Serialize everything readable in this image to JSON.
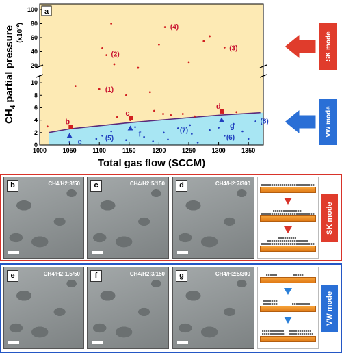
{
  "chart_data": {
    "type": "scatter",
    "panel_label": "a",
    "xlabel": "Total gas flow (SCCM)",
    "ylabel_main": "CH",
    "ylabel_sub": "4",
    "ylabel_rest": " partial pressure",
    "ylabel_unit_base": "(x10",
    "ylabel_unit_exp": "-3",
    "ylabel_unit_end": ")",
    "xlim": [
      1000,
      1375
    ],
    "x_ticks": [
      "1000",
      "1050",
      "1100",
      "1150",
      "1200",
      "1250",
      "1300",
      "1350"
    ],
    "y_ticks_lower": [
      "0",
      "2",
      "4",
      "6",
      "8",
      "10"
    ],
    "y_ticks_upper": [
      "20",
      "40",
      "60",
      "80",
      "100"
    ],
    "axis_break": true,
    "regions": [
      {
        "name": "SK mode",
        "color": "#fdeab4"
      },
      {
        "name": "VW mode",
        "color": "#a8e6f3"
      }
    ],
    "boundary": [
      [
        1015,
        2.0
      ],
      [
        1050,
        2.6
      ],
      [
        1100,
        3.1
      ],
      [
        1150,
        3.6
      ],
      [
        1200,
        4.0
      ],
      [
        1250,
        4.4
      ],
      [
        1300,
        4.8
      ],
      [
        1370,
        5.2
      ]
    ],
    "sk_points": [
      [
        1013,
        3.0
      ],
      [
        1060,
        9.5
      ],
      [
        1100,
        9.0
      ],
      [
        1105,
        45
      ],
      [
        1112,
        35
      ],
      [
        1120,
        80
      ],
      [
        1125,
        22
      ],
      [
        1130,
        4.5
      ],
      [
        1145,
        8.0
      ],
      [
        1152,
        4.0
      ],
      [
        1165,
        17
      ],
      [
        1185,
        8.5
      ],
      [
        1192,
        5.5
      ],
      [
        1200,
        50
      ],
      [
        1207,
        5.0
      ],
      [
        1210,
        75
      ],
      [
        1220,
        4.8
      ],
      [
        1240,
        5.0
      ],
      [
        1250,
        25
      ],
      [
        1260,
        4.6
      ],
      [
        1275,
        55
      ],
      [
        1285,
        62
      ],
      [
        1308,
        5.2
      ],
      [
        1310,
        46
      ],
      [
        1330,
        5.3
      ]
    ],
    "vw_points": [
      [
        1050,
        0.5
      ],
      [
        1095,
        1.0
      ],
      [
        1105,
        1.5
      ],
      [
        1120,
        2.2
      ],
      [
        1145,
        0.8
      ],
      [
        1160,
        2.9
      ],
      [
        1175,
        1.3
      ],
      [
        1190,
        0.6
      ],
      [
        1208,
        2.0
      ],
      [
        1215,
        0.9
      ],
      [
        1232,
        2.7
      ],
      [
        1252,
        3.2
      ],
      [
        1255,
        1.8
      ],
      [
        1265,
        0.4
      ],
      [
        1285,
        2.4
      ],
      [
        1300,
        2.8
      ],
      [
        1310,
        1.5
      ],
      [
        1325,
        3.4
      ],
      [
        1340,
        2.2
      ],
      [
        1350,
        1.0
      ],
      [
        1362,
        3.8
      ]
    ],
    "highlight_sk": [
      {
        "label": "b",
        "x": 1052,
        "y": 2.9
      },
      {
        "label": "c",
        "x": 1153,
        "y": 4.3
      },
      {
        "label": "d",
        "x": 1305,
        "y": 5.4
      }
    ],
    "highlight_vw": [
      {
        "label": "e",
        "x": 1050,
        "y": 1.5
      },
      {
        "label": "f",
        "x": 1152,
        "y": 2.7
      },
      {
        "label": "g",
        "x": 1305,
        "y": 4.0
      }
    ],
    "numbered": [
      {
        "label": "(1)",
        "x": 1103,
        "y": 9.0,
        "color": "#c8102e"
      },
      {
        "label": "(2)",
        "x": 1113,
        "y": 37,
        "color": "#c8102e"
      },
      {
        "label": "(3)",
        "x": 1311,
        "y": 46,
        "color": "#c8102e"
      },
      {
        "label": "(4)",
        "x": 1212,
        "y": 76,
        "color": "#c8102e"
      },
      {
        "label": "(5)",
        "x": 1103,
        "y": 1.2,
        "color": "#1f3fbf"
      },
      {
        "label": "(6)",
        "x": 1306,
        "y": 1.3,
        "color": "#1f3fbf"
      },
      {
        "label": "(7)",
        "x": 1228,
        "y": 2.5,
        "color": "#1f3fbf"
      },
      {
        "label": "(8)",
        "x": 1363,
        "y": 3.9,
        "color": "#1f3fbf"
      }
    ],
    "arrows": [
      {
        "label": "SK mode",
        "color": "#e03c2c"
      },
      {
        "label": "VW mode",
        "color": "#2a6fd6"
      }
    ]
  },
  "panels_sk": {
    "mode_label": "SK mode",
    "images": [
      {
        "label": "b",
        "ratio": "CH4/H2:3/50"
      },
      {
        "label": "c",
        "ratio": "CH4/H2:5/150"
      },
      {
        "label": "d",
        "ratio": "CH4/H2:7/300"
      }
    ]
  },
  "panels_vw": {
    "mode_label": "VW mode",
    "images": [
      {
        "label": "e",
        "ratio": "CH4/H2:1.5/50"
      },
      {
        "label": "f",
        "ratio": "CH4/H2:3/150"
      },
      {
        "label": "g",
        "ratio": "CH4/H2:5/300"
      }
    ]
  }
}
